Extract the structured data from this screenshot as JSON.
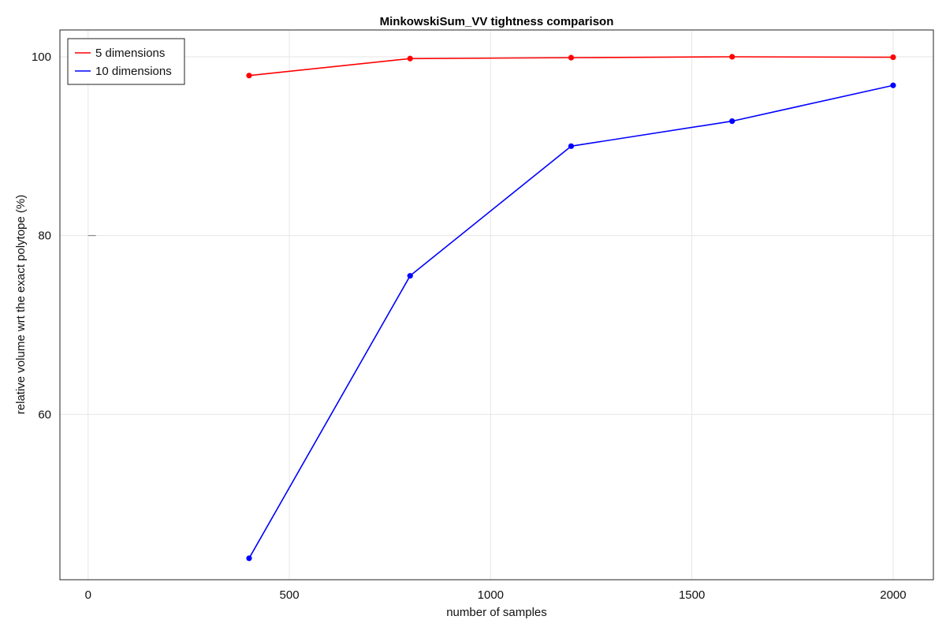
{
  "chart_data": {
    "type": "line",
    "title": "MinkowskiSum_VV tightness comparison",
    "xlabel": "number of samples",
    "ylabel": "relative volume wrt the exact polytope (%)",
    "xlim": [
      -70,
      2100
    ],
    "ylim": [
      41.5,
      103
    ],
    "xticks": [
      0,
      500,
      1000,
      1500,
      2000
    ],
    "yticks": [
      60,
      80,
      100
    ],
    "grid": true,
    "legend_position": "top-left",
    "x": [
      400,
      800,
      1200,
      1600,
      2000
    ],
    "series": [
      {
        "name": "5 dimensions",
        "color": "#ff0000",
        "values": [
          97.9,
          99.8,
          99.9,
          100.0,
          99.95
        ]
      },
      {
        "name": "10 dimensions",
        "color": "#0000ff",
        "values": [
          43.9,
          75.5,
          90.0,
          92.8,
          96.8
        ]
      }
    ]
  }
}
